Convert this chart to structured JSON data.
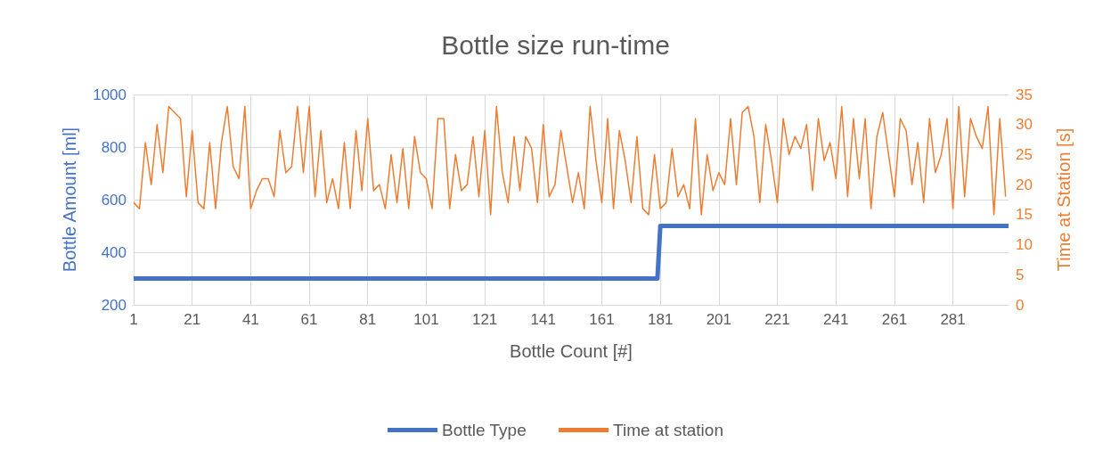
{
  "chart_data": {
    "type": "line",
    "title": "Bottle size run-time",
    "xlabel": "Bottle Count [#]",
    "ylabel": "Bottle Amount [ml]",
    "y2label": "Time at Station [s]",
    "xlim": [
      1,
      300
    ],
    "xticks": [
      1,
      21,
      41,
      61,
      81,
      101,
      121,
      141,
      161,
      181,
      201,
      221,
      241,
      261,
      281
    ],
    "ylim": [
      200,
      1000
    ],
    "yticks": [
      200,
      400,
      600,
      800,
      1000
    ],
    "y2lim": [
      0,
      35
    ],
    "y2ticks": [
      0,
      5,
      10,
      15,
      20,
      25,
      30,
      35
    ],
    "grid": true,
    "legend": "bottom",
    "series": [
      {
        "name": "Bottle Type",
        "color": "#4472c4",
        "x": [
          1,
          180,
          181,
          300
        ],
        "values": [
          300,
          300,
          500,
          500
        ]
      },
      {
        "name": "Time at station",
        "color": "#ed7d31",
        "axis": "y2",
        "x": [
          1,
          3,
          5,
          7,
          9,
          11,
          13,
          15,
          17,
          19,
          21,
          23,
          25,
          27,
          29,
          31,
          33,
          35,
          37,
          39,
          41,
          43,
          45,
          47,
          49,
          51,
          53,
          55,
          57,
          59,
          61,
          63,
          65,
          67,
          69,
          71,
          73,
          75,
          77,
          79,
          81,
          83,
          85,
          87,
          89,
          91,
          93,
          95,
          97,
          99,
          101,
          103,
          105,
          107,
          109,
          111,
          113,
          115,
          117,
          119,
          121,
          123,
          125,
          127,
          129,
          131,
          133,
          135,
          137,
          139,
          141,
          143,
          145,
          147,
          149,
          151,
          153,
          155,
          157,
          159,
          161,
          163,
          165,
          167,
          169,
          171,
          173,
          175,
          177,
          179,
          181,
          183,
          185,
          187,
          189,
          191,
          193,
          195,
          197,
          199,
          201,
          203,
          205,
          207,
          209,
          211,
          213,
          215,
          217,
          219,
          221,
          223,
          225,
          227,
          229,
          231,
          233,
          235,
          237,
          239,
          241,
          243,
          245,
          247,
          249,
          251,
          253,
          255,
          257,
          259,
          261,
          263,
          265,
          267,
          269,
          271,
          273,
          275,
          277,
          279,
          281,
          283,
          285,
          287,
          289,
          291,
          293,
          295,
          297,
          299
        ],
        "values": [
          17,
          16,
          27,
          20,
          30,
          22,
          33,
          32,
          31,
          18,
          29,
          17,
          16,
          27,
          16,
          27,
          33,
          23,
          21,
          33,
          16,
          19,
          21,
          21,
          18,
          29,
          22,
          23,
          33,
          22,
          33,
          18,
          29,
          17,
          21,
          16,
          27,
          16,
          29,
          19,
          31,
          19,
          20,
          16,
          25,
          17,
          26,
          16,
          28,
          22,
          21,
          16,
          31,
          31,
          16,
          25,
          19,
          20,
          28,
          18,
          29,
          15,
          33,
          22,
          17,
          28,
          19,
          28,
          26,
          17,
          30,
          18,
          20,
          29,
          23,
          17,
          22,
          16,
          33,
          24,
          17,
          31,
          16,
          29,
          24,
          17,
          28,
          16,
          15,
          25,
          16,
          17,
          26,
          18,
          20,
          16,
          31,
          15,
          25,
          19,
          22,
          20,
          31,
          20,
          32,
          33,
          28,
          17,
          30,
          24,
          17,
          31,
          25,
          28,
          26,
          30,
          19,
          31,
          24,
          27,
          21,
          33,
          18,
          31,
          21,
          31,
          16,
          28,
          32,
          25,
          18,
          31,
          29,
          20,
          27,
          17,
          31,
          22,
          25,
          31,
          16,
          33,
          18,
          31,
          28,
          26,
          33,
          15,
          31,
          18
        ]
      }
    ]
  }
}
